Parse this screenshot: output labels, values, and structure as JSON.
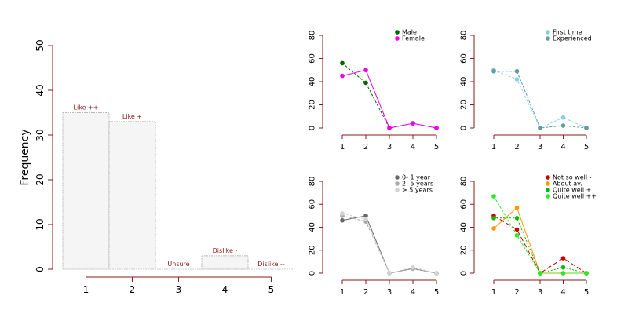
{
  "chart_data": [
    {
      "type": "bar",
      "ylabel": "Frequency",
      "categories": [
        "1",
        "2",
        "3",
        "4",
        "5"
      ],
      "bar_labels": [
        "Like ++",
        "Like +",
        "Unsure",
        "Dislike -",
        "Dislike --"
      ],
      "values": [
        35,
        33,
        0,
        3,
        0
      ],
      "ylim": [
        0,
        50
      ],
      "yticks": [
        0,
        10,
        20,
        30,
        40,
        50
      ],
      "colors": {
        "bar_fill": "#f5f5f5",
        "bar_stroke": "#bbbbbb",
        "axis": "#8B1A1A",
        "label": "#8B1A1A"
      }
    },
    {
      "type": "line",
      "x": [
        1,
        2,
        3,
        4,
        5
      ],
      "xticks": [
        1,
        2,
        3,
        4,
        5
      ],
      "ylim": [
        0,
        80
      ],
      "yticks": [
        0,
        20,
        40,
        60,
        80
      ],
      "legend_position": "top-right",
      "series": [
        {
          "name": "Male",
          "color": "#006400",
          "dash": "3,2",
          "values": [
            56,
            39,
            0,
            4,
            0
          ]
        },
        {
          "name": "Female",
          "color": "#EE00EE",
          "dash": "",
          "values": [
            45,
            50,
            0,
            4,
            0
          ]
        }
      ]
    },
    {
      "type": "line",
      "x": [
        1,
        2,
        3,
        4,
        5
      ],
      "xticks": [
        1,
        2,
        3,
        4,
        5
      ],
      "ylim": [
        0,
        80
      ],
      "yticks": [
        0,
        20,
        40,
        60,
        80
      ],
      "legend_position": "top-right",
      "series": [
        {
          "name": "First time",
          "color": "#87CEEB",
          "dash": "3,2",
          "values": [
            50,
            42,
            0,
            9,
            0
          ]
        },
        {
          "name": "Experienced",
          "color": "#5F9EA0",
          "dash": "3,2",
          "values": [
            49,
            49,
            0,
            2,
            0
          ]
        }
      ]
    },
    {
      "type": "line",
      "x": [
        1,
        2,
        3,
        4,
        5
      ],
      "xticks": [
        1,
        2,
        3,
        4,
        5
      ],
      "ylim": [
        0,
        80
      ],
      "yticks": [
        0,
        20,
        40,
        60,
        80
      ],
      "legend_position": "top-right",
      "series": [
        {
          "name": "0- 1 year",
          "color": "#696969",
          "dash": "",
          "values": [
            46,
            50,
            0,
            4,
            0
          ]
        },
        {
          "name": "2- 5 years",
          "color": "#A9A9A9",
          "dash": "3,2",
          "values": [
            50,
            45,
            0,
            4,
            0
          ]
        },
        {
          "name": "> 5 years",
          "color": "#D3D3D3",
          "dash": "3,2",
          "values": [
            52,
            47,
            0,
            5,
            0
          ]
        }
      ]
    },
    {
      "type": "line",
      "x": [
        1,
        2,
        3,
        4,
        5
      ],
      "xticks": [
        1,
        2,
        3,
        4,
        5
      ],
      "ylim": [
        0,
        80
      ],
      "yticks": [
        0,
        20,
        40,
        60,
        80
      ],
      "legend_position": "top-right",
      "series": [
        {
          "name": "Not so well -",
          "color": "#CC0000",
          "dash": "6,3",
          "values": [
            50,
            38,
            0,
            13,
            0
          ]
        },
        {
          "name": "About av.",
          "color": "#FF9900",
          "dash": "",
          "values": [
            39,
            57,
            0,
            0,
            0
          ]
        },
        {
          "name": "Quite well +",
          "color": "#00BB00",
          "dash": "2,2",
          "values": [
            48,
            48,
            0,
            5,
            0
          ]
        },
        {
          "name": "Quite well ++",
          "color": "#22EE22",
          "dash": "3,2",
          "values": [
            67,
            33,
            0,
            0,
            0
          ]
        }
      ]
    }
  ]
}
